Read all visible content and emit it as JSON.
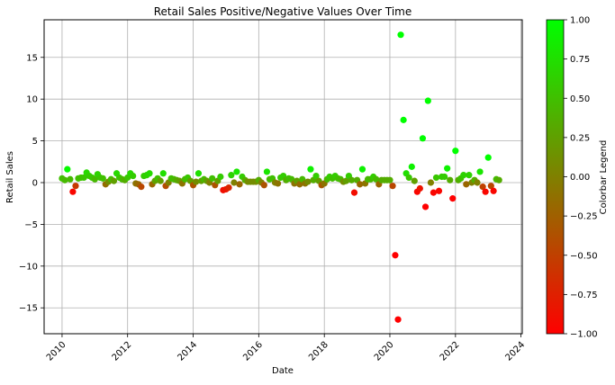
{
  "chart_data": {
    "type": "scatter",
    "title": "Retail Sales Positive/Negative Values Over Time",
    "xlabel": "Date",
    "ylabel": "Retail Sales",
    "xlim": [
      "2009-06-15",
      "2024-01-15"
    ],
    "ylim": [
      -18.1,
      19.5
    ],
    "x_ticks": [
      "2010-01-01",
      "2012-01-01",
      "2014-01-01",
      "2016-01-01",
      "2018-01-01",
      "2020-01-01",
      "2022-01-01",
      "2024-01-01"
    ],
    "x_tick_labels": [
      "2010",
      "2012",
      "2014",
      "2016",
      "2018",
      "2020",
      "2022",
      "2024"
    ],
    "y_ticks": [
      -15,
      -10,
      -5,
      0,
      5,
      10,
      15
    ],
    "y_tick_labels": [
      "−15",
      "−10",
      "−5",
      "0",
      "5",
      "10",
      "15"
    ],
    "grid": true,
    "colorbar": {
      "label": "Colorbar Legend",
      "range": [
        -1,
        1
      ],
      "ticks": [
        -1,
        -0.75,
        -0.5,
        -0.25,
        0,
        0.25,
        0.5,
        0.75,
        1
      ],
      "tick_labels": [
        "−1.00",
        "−0.75",
        "−0.50",
        "−0.25",
        "0.00",
        "0.25",
        "0.50",
        "0.75",
        "1.00"
      ],
      "colors": [
        "#ff0000",
        "#00ff00"
      ]
    },
    "point_color_rule": "color value = +1 when retail sales >= 0, -1 when negative; shade varies",
    "points": [
      {
        "x": "2010-01-01",
        "y": 0.5,
        "c": 0.5
      },
      {
        "x": "2010-02-01",
        "y": 0.3,
        "c": 0.45
      },
      {
        "x": "2010-03-01",
        "y": 1.6,
        "c": 0.95
      },
      {
        "x": "2010-04-01",
        "y": 0.4,
        "c": 0.45
      },
      {
        "x": "2010-05-01",
        "y": -1.1,
        "c": -0.95
      },
      {
        "x": "2010-06-01",
        "y": -0.4,
        "c": -0.55
      },
      {
        "x": "2010-07-01",
        "y": 0.5,
        "c": 0.5
      },
      {
        "x": "2010-08-01",
        "y": 0.6,
        "c": 0.5
      },
      {
        "x": "2010-09-01",
        "y": 0.6,
        "c": 0.55
      },
      {
        "x": "2010-10-01",
        "y": 1.2,
        "c": 0.7
      },
      {
        "x": "2010-11-01",
        "y": 0.8,
        "c": 0.6
      },
      {
        "x": "2010-12-01",
        "y": 0.6,
        "c": 0.55
      },
      {
        "x": "2011-01-01",
        "y": 0.4,
        "c": 0.45
      },
      {
        "x": "2011-02-01",
        "y": 1.0,
        "c": 0.65
      },
      {
        "x": "2011-03-01",
        "y": 0.6,
        "c": 0.55
      },
      {
        "x": "2011-04-01",
        "y": 0.5,
        "c": 0.5
      },
      {
        "x": "2011-05-01",
        "y": -0.2,
        "c": -0.15
      },
      {
        "x": "2011-06-01",
        "y": 0.1,
        "c": 0.1
      },
      {
        "x": "2011-07-01",
        "y": 0.4,
        "c": 0.45
      },
      {
        "x": "2011-08-01",
        "y": 0.2,
        "c": 0.25
      },
      {
        "x": "2011-09-01",
        "y": 1.1,
        "c": 0.7
      },
      {
        "x": "2011-10-01",
        "y": 0.6,
        "c": 0.55
      },
      {
        "x": "2011-11-01",
        "y": 0.4,
        "c": 0.45
      },
      {
        "x": "2011-12-01",
        "y": 0.3,
        "c": 0.35
      },
      {
        "x": "2012-01-01",
        "y": 0.6,
        "c": 0.55
      },
      {
        "x": "2012-02-01",
        "y": 1.1,
        "c": 0.7
      },
      {
        "x": "2012-03-01",
        "y": 0.8,
        "c": 0.6
      },
      {
        "x": "2012-04-01",
        "y": -0.1,
        "c": -0.1
      },
      {
        "x": "2012-05-01",
        "y": -0.2,
        "c": -0.2
      },
      {
        "x": "2012-06-01",
        "y": -0.5,
        "c": -0.45
      },
      {
        "x": "2012-07-01",
        "y": 0.8,
        "c": 0.6
      },
      {
        "x": "2012-08-01",
        "y": 0.9,
        "c": 0.65
      },
      {
        "x": "2012-09-01",
        "y": 1.1,
        "c": 0.7
      },
      {
        "x": "2012-10-01",
        "y": -0.2,
        "c": -0.2
      },
      {
        "x": "2012-11-01",
        "y": 0.2,
        "c": 0.25
      },
      {
        "x": "2012-12-01",
        "y": 0.5,
        "c": 0.5
      },
      {
        "x": "2013-01-01",
        "y": 0.2,
        "c": 0.25
      },
      {
        "x": "2013-02-01",
        "y": 1.1,
        "c": 0.75
      },
      {
        "x": "2013-03-01",
        "y": -0.4,
        "c": -0.4
      },
      {
        "x": "2013-04-01",
        "y": 0.0,
        "c": 0.0
      },
      {
        "x": "2013-05-01",
        "y": 0.5,
        "c": 0.5
      },
      {
        "x": "2013-06-01",
        "y": 0.4,
        "c": 0.45
      },
      {
        "x": "2013-07-01",
        "y": 0.3,
        "c": 0.35
      },
      {
        "x": "2013-08-01",
        "y": 0.2,
        "c": 0.25
      },
      {
        "x": "2013-09-01",
        "y": -0.1,
        "c": -0.1
      },
      {
        "x": "2013-10-01",
        "y": 0.4,
        "c": 0.45
      },
      {
        "x": "2013-11-01",
        "y": 0.6,
        "c": 0.55
      },
      {
        "x": "2013-12-01",
        "y": 0.2,
        "c": 0.25
      },
      {
        "x": "2014-01-01",
        "y": -0.3,
        "c": -0.35
      },
      {
        "x": "2014-02-01",
        "y": 0.1,
        "c": 0.1
      },
      {
        "x": "2014-03-01",
        "y": 1.1,
        "c": 0.75
      },
      {
        "x": "2014-04-01",
        "y": 0.2,
        "c": 0.25
      },
      {
        "x": "2014-05-01",
        "y": 0.4,
        "c": 0.45
      },
      {
        "x": "2014-06-01",
        "y": 0.2,
        "c": 0.25
      },
      {
        "x": "2014-07-01",
        "y": 0.0,
        "c": 0.0
      },
      {
        "x": "2014-08-01",
        "y": 0.5,
        "c": 0.5
      },
      {
        "x": "2014-09-01",
        "y": -0.3,
        "c": -0.35
      },
      {
        "x": "2014-10-01",
        "y": 0.2,
        "c": 0.25
      },
      {
        "x": "2014-11-01",
        "y": 0.7,
        "c": 0.6
      },
      {
        "x": "2014-12-01",
        "y": -0.9,
        "c": -0.9
      },
      {
        "x": "2015-01-01",
        "y": -0.8,
        "c": -0.85
      },
      {
        "x": "2015-02-01",
        "y": -0.6,
        "c": -0.7
      },
      {
        "x": "2015-03-01",
        "y": 0.9,
        "c": 0.65
      },
      {
        "x": "2015-04-01",
        "y": 0.0,
        "c": 0.0
      },
      {
        "x": "2015-05-01",
        "y": 1.3,
        "c": 0.8
      },
      {
        "x": "2015-06-01",
        "y": -0.2,
        "c": -0.2
      },
      {
        "x": "2015-07-01",
        "y": 0.7,
        "c": 0.6
      },
      {
        "x": "2015-08-01",
        "y": 0.3,
        "c": 0.35
      },
      {
        "x": "2015-09-01",
        "y": 0.1,
        "c": 0.1
      },
      {
        "x": "2015-10-01",
        "y": 0.1,
        "c": 0.1
      },
      {
        "x": "2015-11-01",
        "y": 0.1,
        "c": 0.1
      },
      {
        "x": "2015-12-01",
        "y": 0.1,
        "c": 0.1
      },
      {
        "x": "2016-01-01",
        "y": 0.3,
        "c": 0.35
      },
      {
        "x": "2016-02-01",
        "y": 0.0,
        "c": 0.0
      },
      {
        "x": "2016-03-01",
        "y": -0.3,
        "c": -0.35
      },
      {
        "x": "2016-04-01",
        "y": 1.3,
        "c": 0.8
      },
      {
        "x": "2016-05-01",
        "y": 0.4,
        "c": 0.45
      },
      {
        "x": "2016-06-01",
        "y": 0.5,
        "c": 0.5
      },
      {
        "x": "2016-07-01",
        "y": 0.0,
        "c": 0.0
      },
      {
        "x": "2016-08-01",
        "y": -0.1,
        "c": -0.1
      },
      {
        "x": "2016-09-01",
        "y": 0.6,
        "c": 0.55
      },
      {
        "x": "2016-10-01",
        "y": 0.8,
        "c": 0.6
      },
      {
        "x": "2016-11-01",
        "y": 0.3,
        "c": 0.35
      },
      {
        "x": "2016-12-01",
        "y": 0.5,
        "c": 0.5
      },
      {
        "x": "2017-01-01",
        "y": 0.4,
        "c": 0.45
      },
      {
        "x": "2017-02-01",
        "y": -0.1,
        "c": -0.1
      },
      {
        "x": "2017-03-01",
        "y": 0.2,
        "c": 0.25
      },
      {
        "x": "2017-04-01",
        "y": -0.2,
        "c": -0.15
      },
      {
        "x": "2017-05-01",
        "y": 0.4,
        "c": 0.45
      },
      {
        "x": "2017-06-01",
        "y": -0.1,
        "c": -0.1
      },
      {
        "x": "2017-07-01",
        "y": 0.1,
        "c": 0.1
      },
      {
        "x": "2017-08-01",
        "y": 1.6,
        "c": 0.9
      },
      {
        "x": "2017-09-01",
        "y": 0.3,
        "c": 0.35
      },
      {
        "x": "2017-10-01",
        "y": 0.8,
        "c": 0.6
      },
      {
        "x": "2017-11-01",
        "y": 0.2,
        "c": 0.25
      },
      {
        "x": "2017-12-01",
        "y": -0.3,
        "c": -0.3
      },
      {
        "x": "2018-01-01",
        "y": -0.1,
        "c": -0.1
      },
      {
        "x": "2018-02-01",
        "y": 0.4,
        "c": 0.45
      },
      {
        "x": "2018-03-01",
        "y": 0.7,
        "c": 0.6
      },
      {
        "x": "2018-04-01",
        "y": 0.5,
        "c": 0.5
      },
      {
        "x": "2018-05-01",
        "y": 0.8,
        "c": 0.6
      },
      {
        "x": "2018-06-01",
        "y": 0.5,
        "c": 0.5
      },
      {
        "x": "2018-07-01",
        "y": 0.4,
        "c": 0.45
      },
      {
        "x": "2018-08-01",
        "y": 0.1,
        "c": 0.1
      },
      {
        "x": "2018-09-01",
        "y": 0.2,
        "c": 0.25
      },
      {
        "x": "2018-10-01",
        "y": 0.8,
        "c": 0.6
      },
      {
        "x": "2018-11-01",
        "y": 0.3,
        "c": 0.35
      },
      {
        "x": "2018-12-01",
        "y": -1.2,
        "c": -0.9
      },
      {
        "x": "2019-01-01",
        "y": 0.3,
        "c": 0.35
      },
      {
        "x": "2019-02-01",
        "y": -0.2,
        "c": -0.2
      },
      {
        "x": "2019-03-01",
        "y": 1.6,
        "c": 0.9
      },
      {
        "x": "2019-04-01",
        "y": -0.1,
        "c": -0.1
      },
      {
        "x": "2019-05-01",
        "y": 0.4,
        "c": 0.45
      },
      {
        "x": "2019-06-01",
        "y": 0.4,
        "c": 0.45
      },
      {
        "x": "2019-07-01",
        "y": 0.7,
        "c": 0.6
      },
      {
        "x": "2019-08-01",
        "y": 0.4,
        "c": 0.45
      },
      {
        "x": "2019-09-01",
        "y": -0.2,
        "c": -0.2
      },
      {
        "x": "2019-10-01",
        "y": 0.3,
        "c": 0.35
      },
      {
        "x": "2019-11-01",
        "y": 0.3,
        "c": 0.35
      },
      {
        "x": "2019-12-01",
        "y": 0.3,
        "c": 0.35
      },
      {
        "x": "2020-01-01",
        "y": 0.3,
        "c": 0.35
      },
      {
        "x": "2020-02-01",
        "y": -0.4,
        "c": -0.45
      },
      {
        "x": "2020-03-01",
        "y": -8.7,
        "c": -1.0
      },
      {
        "x": "2020-04-01",
        "y": -16.4,
        "c": -1.0
      },
      {
        "x": "2020-05-01",
        "y": 17.7,
        "c": 1.0
      },
      {
        "x": "2020-06-01",
        "y": 7.5,
        "c": 1.0
      },
      {
        "x": "2020-07-01",
        "y": 1.1,
        "c": 0.75
      },
      {
        "x": "2020-08-01",
        "y": 0.6,
        "c": 0.55
      },
      {
        "x": "2020-09-01",
        "y": 1.9,
        "c": 0.9
      },
      {
        "x": "2020-10-01",
        "y": 0.2,
        "c": 0.25
      },
      {
        "x": "2020-11-01",
        "y": -1.1,
        "c": -0.95
      },
      {
        "x": "2020-12-01",
        "y": -0.7,
        "c": -0.85
      },
      {
        "x": "2021-01-01",
        "y": 5.3,
        "c": 1.0
      },
      {
        "x": "2021-02-01",
        "y": -2.9,
        "c": -1.0
      },
      {
        "x": "2021-03-01",
        "y": 9.8,
        "c": 1.0
      },
      {
        "x": "2021-04-01",
        "y": 0.0,
        "c": 0.0
      },
      {
        "x": "2021-05-01",
        "y": -1.2,
        "c": -0.95
      },
      {
        "x": "2021-06-01",
        "y": 0.6,
        "c": 0.55
      },
      {
        "x": "2021-07-01",
        "y": -1.0,
        "c": -0.95
      },
      {
        "x": "2021-08-01",
        "y": 0.7,
        "c": 0.6
      },
      {
        "x": "2021-09-01",
        "y": 0.7,
        "c": 0.6
      },
      {
        "x": "2021-10-01",
        "y": 1.7,
        "c": 0.9
      },
      {
        "x": "2021-11-01",
        "y": 0.3,
        "c": 0.35
      },
      {
        "x": "2021-12-01",
        "y": -1.9,
        "c": -1.0
      },
      {
        "x": "2022-01-01",
        "y": 3.8,
        "c": 1.0
      },
      {
        "x": "2022-02-01",
        "y": 0.3,
        "c": 0.35
      },
      {
        "x": "2022-03-01",
        "y": 0.5,
        "c": 0.5
      },
      {
        "x": "2022-04-01",
        "y": 0.9,
        "c": 0.65
      },
      {
        "x": "2022-05-01",
        "y": -0.2,
        "c": -0.2
      },
      {
        "x": "2022-06-01",
        "y": 0.9,
        "c": 0.65
      },
      {
        "x": "2022-07-01",
        "y": 0.0,
        "c": 0.0
      },
      {
        "x": "2022-08-01",
        "y": 0.3,
        "c": 0.35
      },
      {
        "x": "2022-09-01",
        "y": 0.0,
        "c": 0.0
      },
      {
        "x": "2022-10-01",
        "y": 1.3,
        "c": 0.8
      },
      {
        "x": "2022-11-01",
        "y": -0.5,
        "c": -0.5
      },
      {
        "x": "2022-12-01",
        "y": -1.1,
        "c": -0.95
      },
      {
        "x": "2023-01-01",
        "y": 3.0,
        "c": 1.0
      },
      {
        "x": "2023-02-01",
        "y": -0.4,
        "c": -0.45
      },
      {
        "x": "2023-03-01",
        "y": -1.0,
        "c": -0.95
      },
      {
        "x": "2023-04-01",
        "y": 0.4,
        "c": 0.45
      },
      {
        "x": "2023-05-01",
        "y": 0.3,
        "c": 0.35
      }
    ]
  }
}
